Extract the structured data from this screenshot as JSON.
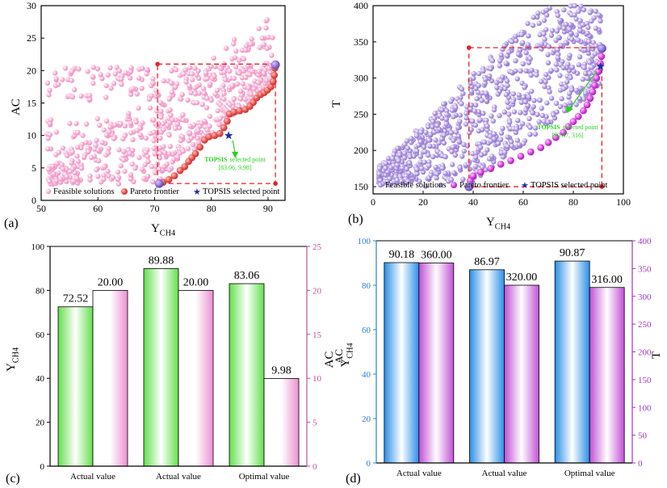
{
  "colors": {
    "feasible_pink": "#f7a8d0",
    "pareto_red": "#e8504d",
    "topsis_blue": "#1f2f9c",
    "dashed_red": "#e8202a",
    "feasible_purple": "#ad95e0",
    "pareto_magenta": "#d63ce0",
    "green_label": "#27d11e",
    "bar_green": "#63e04c",
    "bar_pink": "#ec8fd1",
    "bar_blue": "#2a8fe8",
    "bar_magenta": "#c24fd6",
    "axis_magenta": "#c44fa0",
    "axis_blue": "#2a7fd6",
    "axis_purple": "#9a3ab8"
  },
  "chart_data": [
    {
      "panel": "(a)",
      "type": "scatter",
      "xlabel_main": "Y",
      "xlabel_sub": "CH4",
      "ylabel": "AC",
      "xlim": [
        50,
        93
      ],
      "ylim": [
        0,
        30
      ],
      "xticks": [
        50,
        60,
        70,
        80,
        90
      ],
      "yticks": [
        0,
        5,
        10,
        15,
        20,
        25,
        30
      ],
      "legend": [
        "Feasible solutions",
        "Pareto frontier",
        "TOPSIS selected point"
      ],
      "annotation_title": "TOPSIS",
      "annotation_rest": "selected point",
      "annotation_value": "[83.06, 9.98]",
      "topsis_point": [
        83.06,
        9.98
      ],
      "pareto_frontier": [
        [
          70.8,
          2.6
        ],
        [
          71.5,
          2.8
        ],
        [
          72.5,
          3.2
        ],
        [
          73.5,
          3.8
        ],
        [
          74.5,
          4.6
        ],
        [
          75.3,
          5.2
        ],
        [
          76.0,
          6.0
        ],
        [
          76.6,
          6.6
        ],
        [
          77.2,
          7.2
        ],
        [
          78.0,
          8.2
        ],
        [
          78.8,
          9.3
        ],
        [
          79.6,
          9.8
        ],
        [
          80.6,
          10.0
        ],
        [
          81.5,
          10.3
        ],
        [
          82.2,
          11.2
        ],
        [
          82.8,
          12.2
        ],
        [
          83.2,
          13.3
        ],
        [
          84.0,
          13.6
        ],
        [
          85.0,
          13.8
        ],
        [
          86.0,
          14.0
        ],
        [
          86.8,
          14.5
        ],
        [
          87.4,
          15.1
        ],
        [
          88.0,
          15.8
        ],
        [
          88.7,
          16.3
        ],
        [
          89.3,
          16.6
        ],
        [
          89.9,
          17.0
        ],
        [
          90.5,
          17.5
        ],
        [
          90.9,
          18.3
        ],
        [
          91.1,
          19.3
        ],
        [
          91.2,
          20.4
        ],
        [
          91.3,
          20.9
        ]
      ],
      "corner_points": [
        [
          70.52,
          21.0
        ],
        [
          91.3,
          21.0
        ],
        [
          70.52,
          2.6
        ],
        [
          91.3,
          2.6
        ]
      ],
      "feasible_region": {
        "x_min": 51,
        "x_max": 91,
        "y_max": 28.5,
        "count": 700
      }
    },
    {
      "panel": "(b)",
      "type": "scatter",
      "xlabel_main": "Y",
      "xlabel_sub": "CH4",
      "ylabel": "T",
      "xlim": [
        0,
        100
      ],
      "ylim": [
        140,
        400
      ],
      "xticks": [
        0,
        20,
        40,
        60,
        80,
        100
      ],
      "yticks": [
        150,
        200,
        250,
        300,
        350,
        400
      ],
      "legend": [
        "Feasible solutions",
        "Pareto frontier",
        "TOPSIS selected point"
      ],
      "annotation_title": "TOPSIS",
      "annotation_rest": "selected point",
      "annotation_value": "[90.87, 316]",
      "topsis_point": [
        90.87,
        316
      ],
      "pareto_frontier": [
        [
          38.3,
          150
        ],
        [
          38.8,
          158
        ],
        [
          40,
          165
        ],
        [
          43,
          170
        ],
        [
          47,
          175
        ],
        [
          51,
          181
        ],
        [
          55,
          186
        ],
        [
          59,
          192
        ],
        [
          63,
          198
        ],
        [
          67,
          204
        ],
        [
          70,
          211
        ],
        [
          73,
          218
        ],
        [
          76,
          225
        ],
        [
          78,
          233
        ],
        [
          80,
          240
        ],
        [
          82,
          247
        ],
        [
          84,
          255
        ],
        [
          85.5,
          263
        ],
        [
          86.7,
          272
        ],
        [
          87.7,
          281
        ],
        [
          88.5,
          290
        ],
        [
          89.3,
          300
        ],
        [
          90.0,
          309
        ],
        [
          90.8,
          320
        ],
        [
          91.2,
          330
        ],
        [
          91.4,
          341
        ]
      ],
      "corner_points": [
        [
          38.3,
          342
        ],
        [
          91.4,
          342
        ],
        [
          38.3,
          150
        ],
        [
          91.4,
          150
        ]
      ],
      "feasible_region": {
        "x_min": 2,
        "x_max": 91,
        "y_min": 150,
        "y_max": 400,
        "count": 850
      }
    },
    {
      "panel": "(c)",
      "type": "bar",
      "categories": [
        "Actual value",
        "Actual value",
        "Optimal value"
      ],
      "series": [
        {
          "name": "Y_CH4",
          "axis": "left",
          "values": [
            72.52,
            89.88,
            83.06
          ]
        },
        {
          "name": "AC",
          "axis": "right",
          "values": [
            20.0,
            20.0,
            9.98
          ]
        }
      ],
      "labels": [
        "72.52",
        "20.00",
        "89.88",
        "20.00",
        "83.06",
        "9.98"
      ],
      "ylabel_left_main": "Y",
      "ylabel_left_sub": "CH4",
      "ylabel_right": "AC",
      "ylim_left": [
        0,
        100
      ],
      "ylim_right": [
        0,
        25
      ],
      "yticks_left": [
        0,
        20,
        40,
        60,
        80,
        100
      ],
      "yticks_right": [
        0,
        5,
        10,
        15,
        20,
        25
      ]
    },
    {
      "panel": "(d)",
      "type": "bar",
      "categories": [
        "Actual value",
        "Actual value",
        "Optimal value"
      ],
      "series": [
        {
          "name": "Y_CH4",
          "axis": "left",
          "values": [
            90.18,
            86.97,
            90.87
          ]
        },
        {
          "name": "T",
          "axis": "right",
          "values": [
            360.0,
            320.0,
            316.0
          ]
        }
      ],
      "labels": [
        "90.18",
        "360.00",
        "86.97",
        "320.00",
        "90.87",
        "316.00"
      ],
      "ylabel_left_main": "Y",
      "ylabel_left_sub": "CH4",
      "ylabel_right": "T",
      "ylim_left": [
        0,
        100
      ],
      "ylim_right": [
        0,
        400
      ],
      "yticks_left": [
        0,
        20,
        40,
        60,
        80,
        100
      ],
      "yticks_right": [
        0,
        50,
        100,
        150,
        200,
        250,
        300,
        350,
        400
      ]
    }
  ]
}
